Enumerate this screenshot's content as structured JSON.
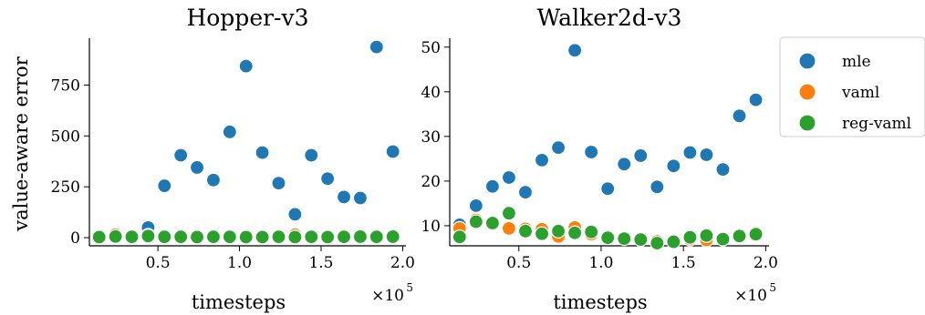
{
  "ylabel": "value-aware error",
  "legend": {
    "placement": "outside-right",
    "entries": [
      {
        "name": "mle",
        "color": "#1f77b4"
      },
      {
        "name": "vaml",
        "color": "#ff7f0e"
      },
      {
        "name": "reg-vaml",
        "color": "#2ca02c"
      }
    ]
  },
  "chart_data": [
    {
      "type": "scatter",
      "title": "Hopper-v3",
      "xlabel": "timesteps",
      "x_scale_label": {
        "base": "×10",
        "exp": "5"
      },
      "xlim": [
        0.08,
        2.02
      ],
      "ylim": [
        -40,
        980
      ],
      "xticks": [
        0.5,
        1.0,
        1.5,
        2.0
      ],
      "xtick_labels": [
        "0.5",
        "1.0",
        "1.5",
        "2.0"
      ],
      "yticks": [
        0,
        250,
        500,
        750
      ],
      "ytick_labels": [
        "0",
        "250",
        "500",
        "750"
      ],
      "series": [
        {
          "name": "mle",
          "color": "#1f77b4",
          "x": [
            0.14,
            0.24,
            0.34,
            0.44,
            0.54,
            0.64,
            0.74,
            0.84,
            0.94,
            1.04,
            1.14,
            1.24,
            1.34,
            1.44,
            1.54,
            1.64,
            1.74,
            1.84,
            1.94
          ],
          "y": [
            3,
            10,
            8,
            50,
            255,
            405,
            345,
            283,
            520,
            843,
            418,
            268,
            115,
            405,
            290,
            200,
            195,
            937,
            423
          ]
        },
        {
          "name": "vaml",
          "color": "#ff7f0e",
          "x": [
            0.14,
            0.24,
            0.34,
            0.44,
            0.54,
            0.64,
            0.74,
            0.84,
            0.94,
            1.04,
            1.14,
            1.24,
            1.34,
            1.44,
            1.54,
            1.64,
            1.74,
            1.84,
            1.94
          ],
          "y": [
            5,
            15,
            8,
            12,
            5,
            6,
            5,
            4,
            6,
            5,
            4,
            5,
            14,
            5,
            8,
            9,
            11,
            5,
            8
          ]
        },
        {
          "name": "reg-vaml",
          "color": "#2ca02c",
          "x": [
            0.14,
            0.24,
            0.34,
            0.44,
            0.54,
            0.64,
            0.74,
            0.84,
            0.94,
            1.04,
            1.14,
            1.24,
            1.34,
            1.44,
            1.54,
            1.64,
            1.74,
            1.84,
            1.94
          ],
          "y": [
            3,
            6,
            4,
            8,
            4,
            4,
            3,
            4,
            4,
            3,
            3,
            4,
            3,
            4,
            3,
            4,
            5,
            4,
            5
          ]
        }
      ]
    },
    {
      "type": "scatter",
      "title": "Walker2d-v3",
      "xlabel": "timesteps",
      "x_scale_label": {
        "base": "×10",
        "exp": "5"
      },
      "xlim": [
        0.08,
        2.02
      ],
      "ylim": [
        5.5,
        52
      ],
      "xticks": [
        0.5,
        1.0,
        1.5,
        2.0
      ],
      "xtick_labels": [
        "0.5",
        "1.0",
        "1.5",
        "2.0"
      ],
      "yticks": [
        10,
        20,
        30,
        40,
        50
      ],
      "ytick_labels": [
        "10",
        "20",
        "30",
        "40",
        "50"
      ],
      "series": [
        {
          "name": "mle",
          "color": "#1f77b4",
          "x": [
            0.14,
            0.24,
            0.34,
            0.44,
            0.54,
            0.64,
            0.74,
            0.84,
            0.94,
            1.04,
            1.14,
            1.24,
            1.34,
            1.44,
            1.54,
            1.64,
            1.74,
            1.84,
            1.94
          ],
          "y": [
            10.2,
            14.5,
            18.8,
            20.8,
            17.5,
            24.7,
            27.5,
            49.3,
            26.5,
            18.3,
            23.8,
            25.7,
            18.7,
            23.4,
            26.4,
            25.9,
            22.6,
            34.6,
            38.2
          ]
        },
        {
          "name": "vaml",
          "color": "#ff7f0e",
          "x": [
            0.14,
            0.24,
            0.34,
            0.44,
            0.54,
            0.64,
            0.74,
            0.84,
            0.94,
            1.04,
            1.14,
            1.24,
            1.34,
            1.44,
            1.54,
            1.64,
            1.74,
            1.84,
            1.94
          ],
          "y": [
            9.4,
            11.3,
            10.6,
            9.4,
            9.3,
            9.2,
            7.6,
            9.6,
            8.1,
            7.4,
            7.2,
            7.0,
            6.5,
            6.5,
            7.0,
            6.8,
            7.0,
            7.8,
            8.4
          ]
        },
        {
          "name": "reg-vaml",
          "color": "#2ca02c",
          "x": [
            0.14,
            0.24,
            0.34,
            0.44,
            0.54,
            0.64,
            0.74,
            0.84,
            0.94,
            1.04,
            1.14,
            1.24,
            1.34,
            1.44,
            1.54,
            1.64,
            1.74,
            1.84,
            1.94
          ],
          "y": [
            7.5,
            10.9,
            10.6,
            12.8,
            8.8,
            8.2,
            8.8,
            8.4,
            8.6,
            7.3,
            7.1,
            6.9,
            6.1,
            6.4,
            7.4,
            7.8,
            7.0,
            7.7,
            8.1
          ]
        }
      ]
    }
  ]
}
